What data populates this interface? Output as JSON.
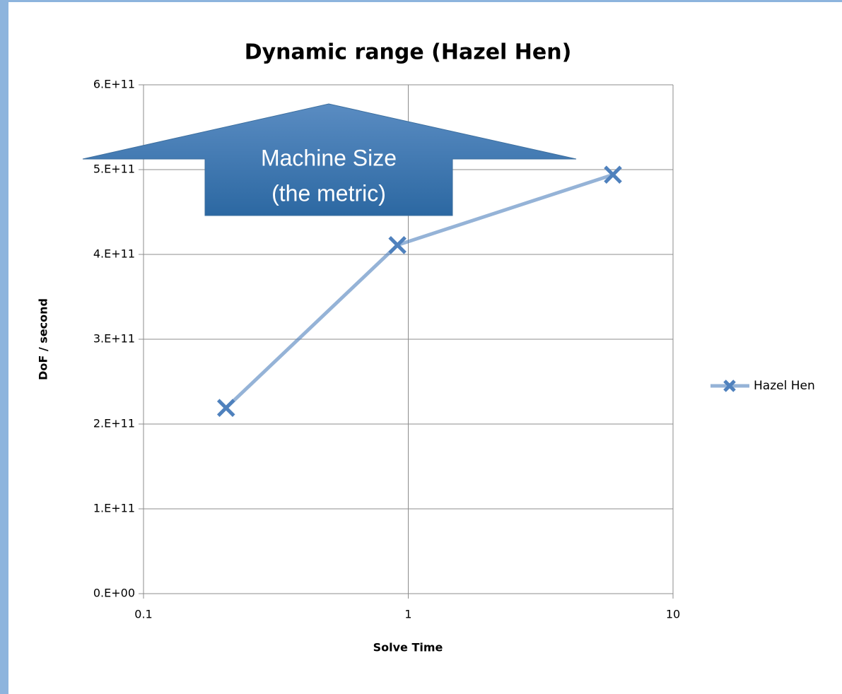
{
  "chart_data": {
    "type": "line",
    "title": "Dynamic range (Hazel Hen)",
    "x_label": "Solve Time",
    "y_label": "DoF / second",
    "xscale": "log",
    "xlim": [
      0.1,
      10
    ],
    "xticks": [
      0.1,
      1,
      10
    ],
    "ylim": [
      0,
      600000000000
    ],
    "yticks": [
      {
        "value": 0,
        "label": "0.E+00"
      },
      {
        "value": 100000000000,
        "label": "1.E+11"
      },
      {
        "value": 200000000000,
        "label": "2.E+11"
      },
      {
        "value": 300000000000,
        "label": "3.E+11"
      },
      {
        "value": 400000000000,
        "label": "4.E+11"
      },
      {
        "value": 500000000000,
        "label": "5.E+11"
      },
      {
        "value": 600000000000,
        "label": "6.E+11"
      }
    ],
    "grid": true,
    "legend": "right",
    "x": [
      0.205,
      0.91,
      5.93
    ],
    "series": [
      {
        "name": "Hazel Hen",
        "color": "#4f81bd",
        "values": [
          219000000000,
          411000000000,
          494000000000
        ]
      }
    ],
    "annotations": [
      "Machine Size",
      "(the metric)"
    ]
  }
}
